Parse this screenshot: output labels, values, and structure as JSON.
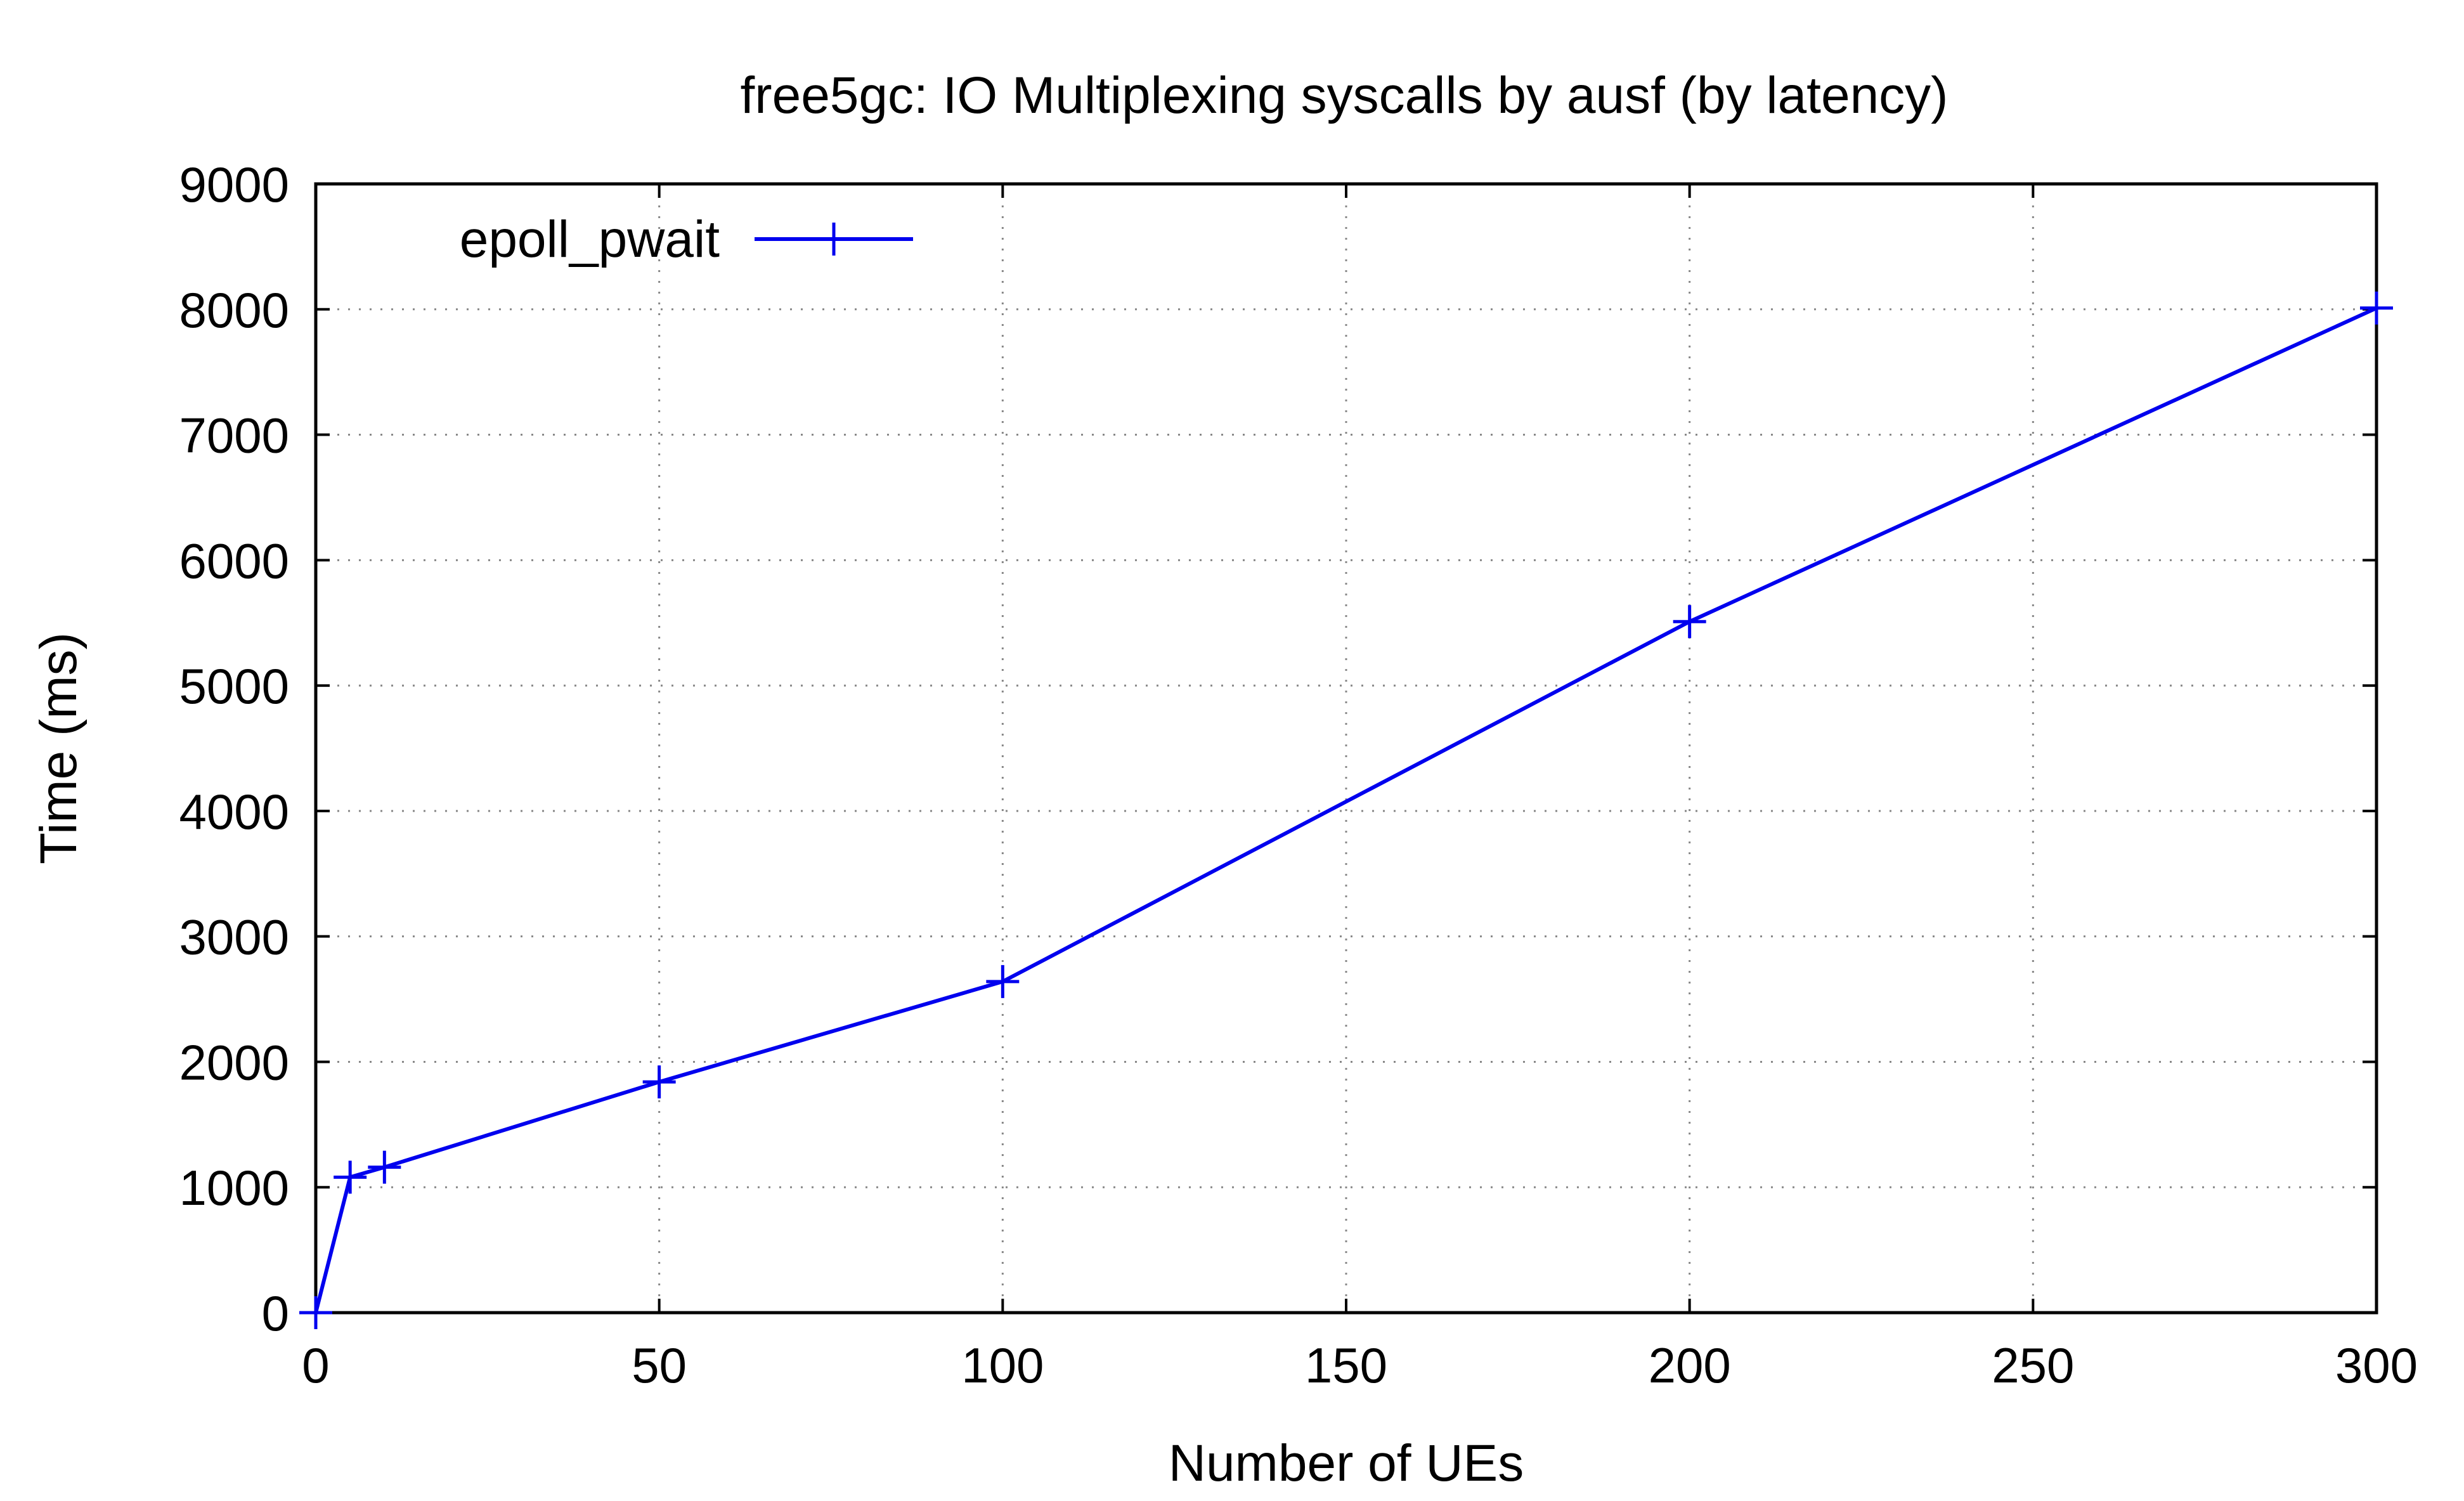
{
  "chart_data": {
    "type": "line",
    "title": "free5gc: IO Multiplexing syscalls by ausf (by latency)",
    "xlabel": "Number of UEs",
    "ylabel": "Time (ms)",
    "xlim": [
      0,
      300
    ],
    "ylim": [
      0,
      9000
    ],
    "xticks": [
      0,
      50,
      100,
      150,
      200,
      250,
      300
    ],
    "yticks": [
      0,
      1000,
      2000,
      3000,
      4000,
      5000,
      6000,
      7000,
      8000,
      9000
    ],
    "grid": true,
    "legend_position": "top-left",
    "series": [
      {
        "name": "epoll_pwait",
        "color": "#0000ee",
        "marker": "plus",
        "x": [
          0,
          5,
          10,
          50,
          100,
          200,
          300
        ],
        "y": [
          0,
          1080,
          1160,
          1840,
          2640,
          5510,
          8010
        ]
      }
    ]
  }
}
